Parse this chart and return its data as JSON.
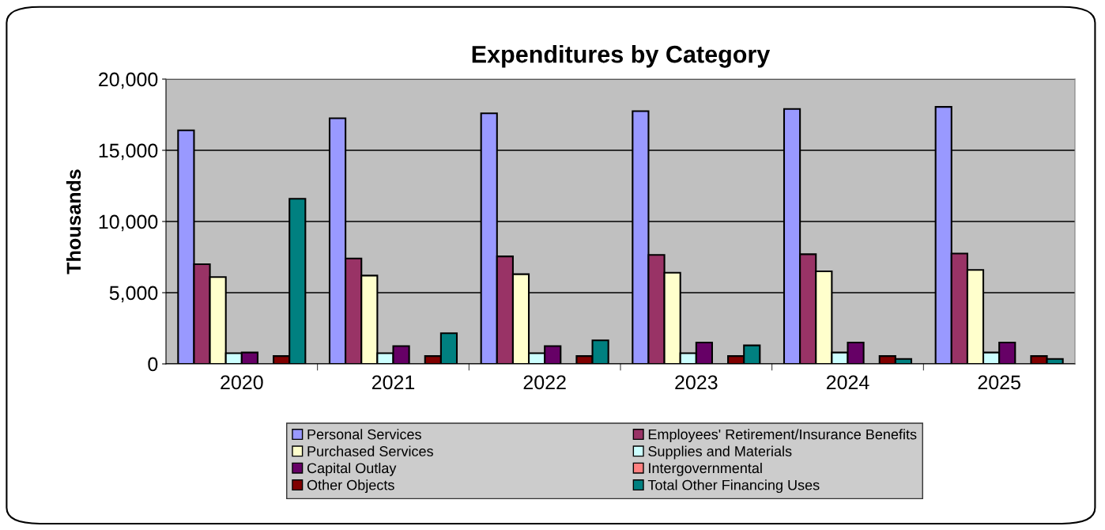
{
  "chart_data": {
    "type": "bar",
    "title": "Expenditures by Category",
    "ylabel": "Thousands",
    "categories": [
      "2020",
      "2021",
      "2022",
      "2023",
      "2024",
      "2025"
    ],
    "series": [
      {
        "name": "Personal Services",
        "color": "#9999ff",
        "values": [
          16400,
          17250,
          17600,
          17750,
          17900,
          18050
        ]
      },
      {
        "name": "Employees' Retirement/Insurance Benefits",
        "color": "#993366",
        "values": [
          7000,
          7400,
          7550,
          7650,
          7700,
          7750
        ]
      },
      {
        "name": "Purchased Services",
        "color": "#ffffcc",
        "values": [
          6100,
          6200,
          6300,
          6400,
          6500,
          6600
        ]
      },
      {
        "name": "Supplies and Materials",
        "color": "#ccffff",
        "values": [
          750,
          750,
          750,
          750,
          800,
          800
        ]
      },
      {
        "name": "Capital Outlay",
        "color": "#660066",
        "values": [
          800,
          1250,
          1250,
          1500,
          1500,
          1500
        ]
      },
      {
        "name": "Intergovernmental",
        "color": "#ff8080",
        "values": [
          0,
          0,
          0,
          0,
          0,
          0
        ]
      },
      {
        "name": "Other Objects",
        "color": "#800000",
        "values": [
          550,
          550,
          550,
          550,
          550,
          550
        ]
      },
      {
        "name": "Total Other Financing Uses",
        "color": "#008080",
        "values": [
          11600,
          2150,
          1650,
          1300,
          350,
          350
        ]
      }
    ],
    "ylim": [
      0,
      20000
    ],
    "yticks": [
      {
        "value": 0,
        "label": "0"
      },
      {
        "value": 5000,
        "label": "5,000"
      },
      {
        "value": 10000,
        "label": "10,000"
      },
      {
        "value": 15000,
        "label": "15,000"
      },
      {
        "value": 20000,
        "label": "20,000"
      }
    ],
    "grid": "y",
    "legend": "bottom"
  }
}
